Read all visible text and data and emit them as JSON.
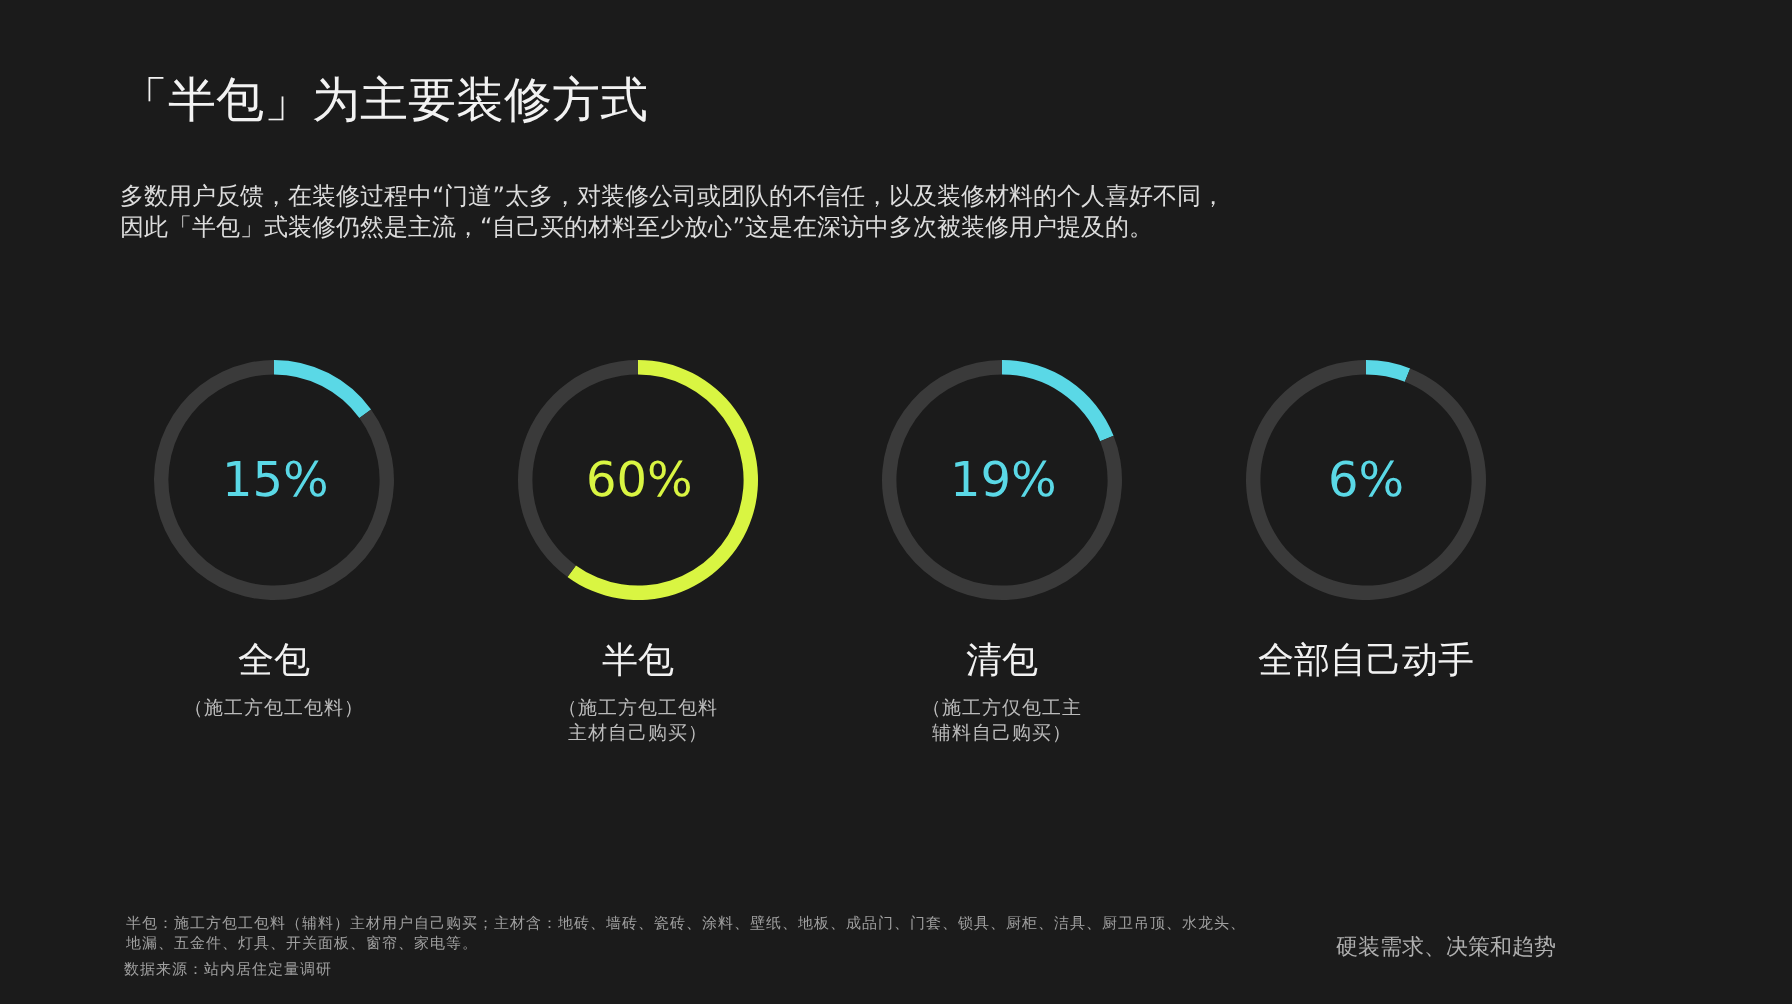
{
  "chart_data": [
    {
      "type": "other",
      "title": "「半包」为主要装修方式",
      "subtitle": "多数用户反馈，在装修过程中“门道”太多，对装修公司或团队的不信任，以及装修材料的个人喜好不同，因此「半包」式装修仍然是主流，“自己买的材料至少放心”这是在深访中多次被装修用户提及的。",
      "annotations": [
        "半包：施工方包工包料（辅料）主材用户自己购买；主材含：地砖、墙砖、瓷砖、涂料、壁纸、地板、成品门、门套、锁具、厨柜、洁具、厨卫吊顶、水龙头、地漏、五金件、灯具、开关面板、窗帘、家电等。",
        "数据来源：站内居住定量调研",
        "硬装需求、决策和趋势"
      ]
    },
    {
      "type": "donut",
      "title": "全包",
      "subtitle": "（施工方包工包料）",
      "categories": [
        null,
        null
      ],
      "values": [
        15,
        85
      ],
      "colors": [
        "#5ad8e6",
        "#3a3a3a"
      ],
      "annotations": [
        "15%"
      ]
    },
    {
      "type": "donut",
      "title": "半包",
      "subtitle": "（施工方包工包料主材自己购买）",
      "categories": [
        null,
        null
      ],
      "values": [
        60,
        40
      ],
      "colors": [
        "#d9f542",
        "#3a3a3a"
      ],
      "annotations": [
        "60%"
      ]
    },
    {
      "type": "donut",
      "title": "清包",
      "subtitle": "（施工方仅包工主辅料自己购买）",
      "categories": [
        null,
        null
      ],
      "values": [
        19,
        81
      ],
      "colors": [
        "#5ad8e6",
        "#3a3a3a"
      ],
      "annotations": [
        "19%"
      ]
    },
    {
      "type": "donut",
      "title": "全部自己动手",
      "categories": [
        null,
        null
      ],
      "values": [
        6,
        94
      ],
      "colors": [
        "#5ad8e6",
        "#3a3a3a"
      ],
      "annotations": [
        "6%"
      ]
    }
  ]
}
